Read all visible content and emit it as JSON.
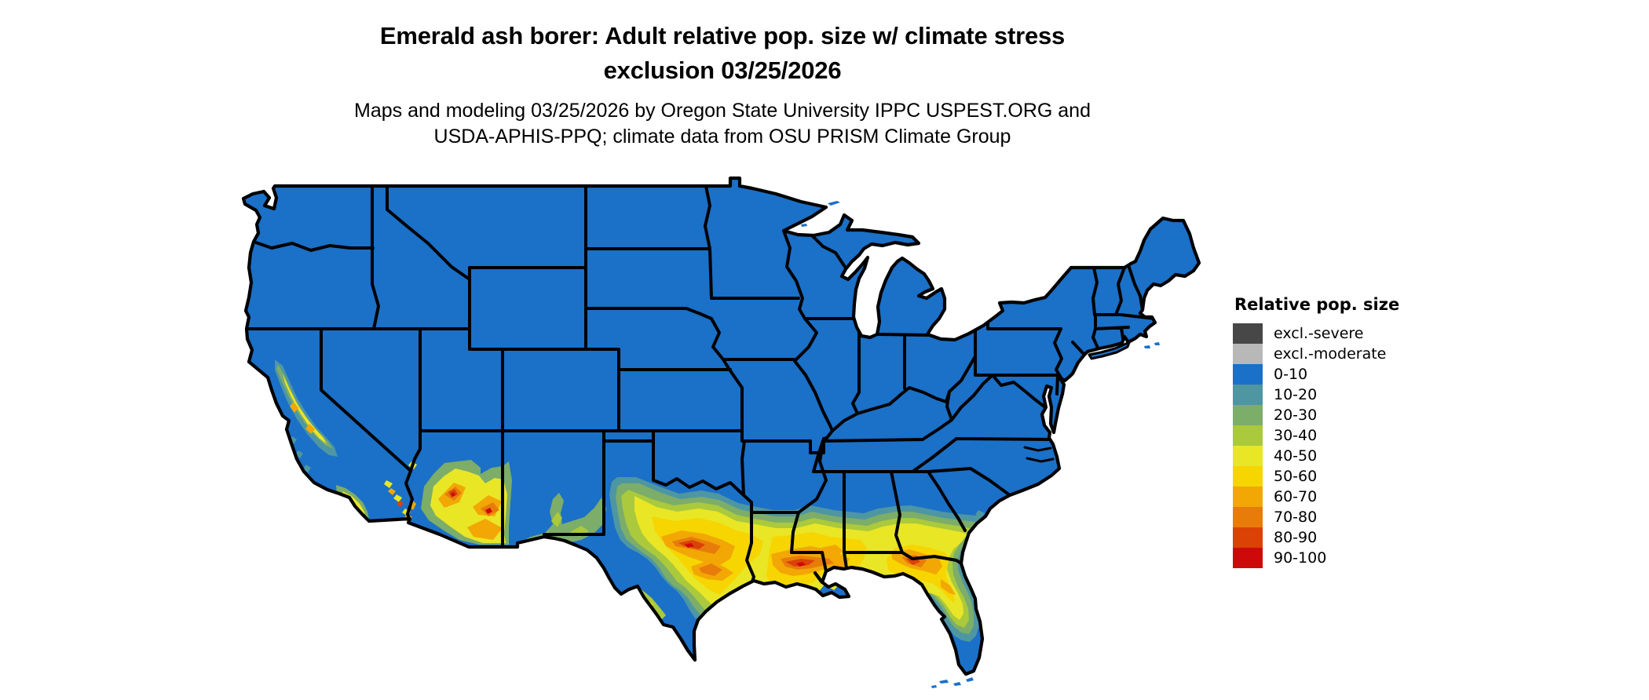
{
  "title": {
    "line1": "Emerald ash borer: Adult relative pop. size w/ climate stress",
    "line2": "exclusion 03/25/2026"
  },
  "subtitle": {
    "line1": "Maps and modeling 03/25/2026 by Oregon State University IPPC USPEST.ORG and",
    "line2": "USDA-APHIS-PPQ; climate data from OSU PRISM Climate Group"
  },
  "legend": {
    "title": "Relative pop. size",
    "entries": [
      {
        "label": "excl.-severe",
        "color": "#474747"
      },
      {
        "label": "excl.-moderate",
        "color": "#b8b8b8"
      },
      {
        "label": "0-10",
        "color": "#1b70c8"
      },
      {
        "label": "10-20",
        "color": "#4e96a2"
      },
      {
        "label": "20-30",
        "color": "#7cad69"
      },
      {
        "label": "30-40",
        "color": "#aac93c"
      },
      {
        "label": "40-50",
        "color": "#e9e626"
      },
      {
        "label": "50-60",
        "color": "#f6d500"
      },
      {
        "label": "60-70",
        "color": "#f2a705"
      },
      {
        "label": "70-80",
        "color": "#e87c0b"
      },
      {
        "label": "80-90",
        "color": "#da4206"
      },
      {
        "label": "90-100",
        "color": "#ce0909"
      }
    ]
  },
  "map": {
    "region": "Continental United States",
    "border_color": "#000000",
    "background_color": "#ffffff"
  }
}
